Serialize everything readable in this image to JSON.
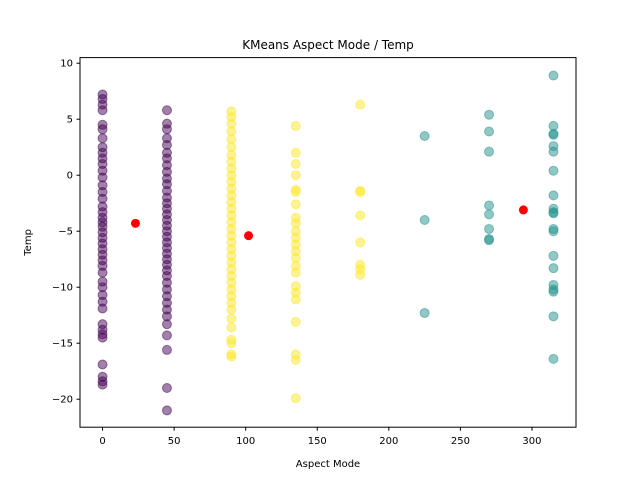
{
  "chart_data": {
    "type": "scatter",
    "title": "KMeans Aspect Mode / Temp",
    "xlabel": "Aspect Mode",
    "ylabel": "Temp",
    "xlim": [
      -15.75,
      330.75
    ],
    "ylim": [
      -22.5,
      10.5
    ],
    "xticks": [
      0,
      50,
      100,
      150,
      200,
      250,
      300
    ],
    "yticks": [
      10,
      5,
      0,
      -5,
      -10,
      -15,
      -20
    ],
    "ytick_labels": [
      "10",
      "5",
      "0",
      "−5",
      "−10",
      "−15",
      "−20"
    ],
    "grid": false,
    "colors": {
      "cluster_0": "#440154",
      "cluster_1": "#21918c",
      "cluster_2": "#fde725",
      "centroid": "#ff0000"
    },
    "series": [
      {
        "cluster": 0,
        "points": [
          [
            0,
            7.2
          ],
          [
            0,
            6.8
          ],
          [
            0,
            6.3
          ],
          [
            0,
            5.8
          ],
          [
            0,
            4.5
          ],
          [
            0,
            4.1
          ],
          [
            0,
            3.3
          ],
          [
            0,
            2.5
          ],
          [
            0,
            2.0
          ],
          [
            0,
            1.5
          ],
          [
            0,
            1.0
          ],
          [
            0,
            0.4
          ],
          [
            0,
            -0.2
          ],
          [
            0,
            -0.9
          ],
          [
            0,
            -1.5
          ],
          [
            0,
            -2.1
          ],
          [
            0,
            -2.8
          ],
          [
            0,
            -3.3
          ],
          [
            0,
            -3.8
          ],
          [
            0,
            -4.2
          ],
          [
            0,
            -4.6
          ],
          [
            0,
            -5.1
          ],
          [
            0,
            -5.6
          ],
          [
            0,
            -6.1
          ],
          [
            0,
            -6.6
          ],
          [
            0,
            -7.1
          ],
          [
            0,
            -7.6
          ],
          [
            0,
            -8.1
          ],
          [
            0,
            -8.7
          ],
          [
            0,
            -9.5
          ],
          [
            0,
            -10.0
          ],
          [
            0,
            -10.7
          ],
          [
            0,
            -11.3
          ],
          [
            0,
            -11.9
          ],
          [
            0,
            -13.3
          ],
          [
            0,
            -13.8
          ],
          [
            0,
            -14.2
          ],
          [
            0,
            -14.5
          ],
          [
            0,
            -16.9
          ],
          [
            0,
            -18.0
          ],
          [
            0,
            -18.4
          ],
          [
            0,
            -18.7
          ],
          [
            45,
            5.8
          ],
          [
            45,
            4.6
          ],
          [
            45,
            4.1
          ],
          [
            45,
            3.3
          ],
          [
            45,
            2.7
          ],
          [
            45,
            2.0
          ],
          [
            45,
            1.5
          ],
          [
            45,
            0.9
          ],
          [
            45,
            0.3
          ],
          [
            45,
            -0.3
          ],
          [
            45,
            -0.8
          ],
          [
            45,
            -1.4
          ],
          [
            45,
            -2.0
          ],
          [
            45,
            -2.5
          ],
          [
            45,
            -3.0
          ],
          [
            45,
            -3.5
          ],
          [
            45,
            -4.0
          ],
          [
            45,
            -4.5
          ],
          [
            45,
            -5.0
          ],
          [
            45,
            -5.5
          ],
          [
            45,
            -6.0
          ],
          [
            45,
            -6.5
          ],
          [
            45,
            -7.0
          ],
          [
            45,
            -7.5
          ],
          [
            45,
            -8.0
          ],
          [
            45,
            -8.5
          ],
          [
            45,
            -9.0
          ],
          [
            45,
            -9.6
          ],
          [
            45,
            -10.2
          ],
          [
            45,
            -10.8
          ],
          [
            45,
            -11.4
          ],
          [
            45,
            -12.0
          ],
          [
            45,
            -12.6
          ],
          [
            45,
            -13.3
          ],
          [
            45,
            -14.3
          ],
          [
            45,
            -15.6
          ],
          [
            45,
            -19.0
          ],
          [
            45,
            -21.0
          ]
        ]
      },
      {
        "cluster": 2,
        "points": [
          [
            90,
            5.7
          ],
          [
            90,
            5.2
          ],
          [
            90,
            4.6
          ],
          [
            90,
            3.9
          ],
          [
            90,
            3.2
          ],
          [
            90,
            2.5
          ],
          [
            90,
            1.8
          ],
          [
            90,
            1.2
          ],
          [
            90,
            0.6
          ],
          [
            90,
            0.0
          ],
          [
            90,
            -0.6
          ],
          [
            90,
            -1.2
          ],
          [
            90,
            -1.8
          ],
          [
            90,
            -2.4
          ],
          [
            90,
            -3.0
          ],
          [
            90,
            -3.6
          ],
          [
            90,
            -4.2
          ],
          [
            90,
            -4.8
          ],
          [
            90,
            -5.4
          ],
          [
            90,
            -6.0
          ],
          [
            90,
            -6.6
          ],
          [
            90,
            -7.2
          ],
          [
            90,
            -7.8
          ],
          [
            90,
            -8.4
          ],
          [
            90,
            -9.0
          ],
          [
            90,
            -9.6
          ],
          [
            90,
            -10.2
          ],
          [
            90,
            -10.8
          ],
          [
            90,
            -11.4
          ],
          [
            90,
            -12.0
          ],
          [
            90,
            -12.8
          ],
          [
            90,
            -13.6
          ],
          [
            90,
            -14.7
          ],
          [
            90,
            -15.0
          ],
          [
            90,
            -16.0
          ],
          [
            90,
            -16.2
          ],
          [
            135,
            4.4
          ],
          [
            135,
            2.0
          ],
          [
            135,
            1.0
          ],
          [
            135,
            0.0
          ],
          [
            135,
            -1.3
          ],
          [
            135,
            -1.5
          ],
          [
            135,
            -2.6
          ],
          [
            135,
            -3.8
          ],
          [
            135,
            -4.3
          ],
          [
            135,
            -5.0
          ],
          [
            135,
            -5.6
          ],
          [
            135,
            -6.2
          ],
          [
            135,
            -6.8
          ],
          [
            135,
            -7.4
          ],
          [
            135,
            -8.1
          ],
          [
            135,
            -8.7
          ],
          [
            135,
            -9.9
          ],
          [
            135,
            -10.5
          ],
          [
            135,
            -11.1
          ],
          [
            135,
            -13.1
          ],
          [
            135,
            -16.0
          ],
          [
            135,
            -16.5
          ],
          [
            135,
            -19.9
          ],
          [
            180,
            6.3
          ],
          [
            180,
            -1.4
          ],
          [
            180,
            -1.5
          ],
          [
            180,
            -3.6
          ],
          [
            180,
            -6.0
          ],
          [
            180,
            -8.0
          ],
          [
            180,
            -8.4
          ],
          [
            180,
            -8.9
          ]
        ]
      },
      {
        "cluster": 1,
        "points": [
          [
            225,
            3.5
          ],
          [
            225,
            -4.0
          ],
          [
            225,
            -12.3
          ],
          [
            270,
            5.4
          ],
          [
            270,
            3.9
          ],
          [
            270,
            2.1
          ],
          [
            270,
            -2.7
          ],
          [
            270,
            -3.5
          ],
          [
            270,
            -4.8
          ],
          [
            270,
            -5.7
          ],
          [
            270,
            -5.8
          ],
          [
            315,
            8.9
          ],
          [
            315,
            4.4
          ],
          [
            315,
            3.6
          ],
          [
            315,
            3.7
          ],
          [
            315,
            2.6
          ],
          [
            315,
            2.1
          ],
          [
            315,
            0.4
          ],
          [
            315,
            -1.8
          ],
          [
            315,
            -3.0
          ],
          [
            315,
            -3.4
          ],
          [
            315,
            -3.3
          ],
          [
            315,
            -4.8
          ],
          [
            315,
            -5.0
          ],
          [
            315,
            -7.2
          ],
          [
            315,
            -8.3
          ],
          [
            315,
            -9.8
          ],
          [
            315,
            -10.2
          ],
          [
            315,
            -10.4
          ],
          [
            315,
            -12.6
          ],
          [
            315,
            -16.4
          ]
        ]
      }
    ],
    "centroids": [
      [
        23,
        -4.3
      ],
      [
        102,
        -5.4
      ],
      [
        294,
        -3.1
      ]
    ]
  }
}
